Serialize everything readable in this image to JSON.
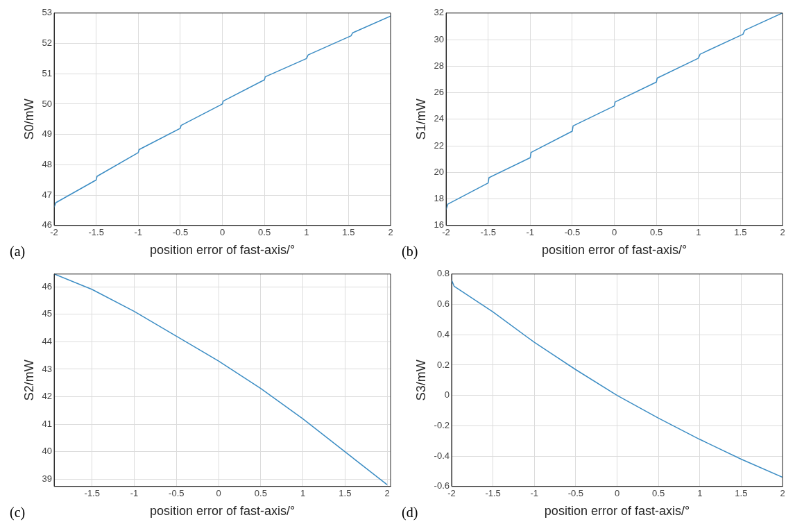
{
  "chart_data": [
    {
      "type": "line",
      "xlabel": "position error of fast-axis/°",
      "ylabel": "S0/mW",
      "annotations": [
        "(a)"
      ],
      "xlim": [
        -2,
        2
      ],
      "xticks": [
        -2,
        -1.5,
        -1,
        -0.5,
        0,
        0.5,
        1,
        1.5,
        2
      ],
      "ylim": [
        46,
        53
      ],
      "yticks": [
        46,
        47,
        48,
        49,
        50,
        51,
        52,
        53
      ],
      "grid": true,
      "legend": false,
      "series": [
        {
          "color": "#3c8dc4",
          "x": [
            -2,
            -1.98,
            -1.5,
            -1.49,
            -1,
            -0.99,
            -0.5,
            -0.49,
            0,
            0.01,
            0.5,
            0.51,
            1,
            1.02,
            1.53,
            1.55,
            2
          ],
          "values": [
            46.6,
            46.75,
            47.5,
            47.62,
            48.4,
            48.5,
            49.2,
            49.3,
            50.0,
            50.1,
            50.8,
            50.9,
            51.5,
            51.62,
            52.25,
            52.35,
            52.9
          ]
        }
      ]
    },
    {
      "type": "line",
      "xlabel": "position error of fast-axis/°",
      "ylabel": "S1/mW",
      "annotations": [
        "(b)"
      ],
      "xlim": [
        -2,
        2
      ],
      "xticks": [
        -2,
        -1.5,
        -1,
        -0.5,
        0,
        0.5,
        1,
        1.5,
        2
      ],
      "ylim": [
        16,
        32
      ],
      "yticks": [
        16,
        18,
        20,
        22,
        24,
        26,
        28,
        30,
        32
      ],
      "grid": true,
      "legend": false,
      "series": [
        {
          "color": "#3c8dc4",
          "x": [
            -2,
            -1.98,
            -1.5,
            -1.49,
            -1,
            -0.99,
            -0.5,
            -0.49,
            0,
            0.01,
            0.5,
            0.51,
            1,
            1.02,
            1.53,
            1.55,
            2
          ],
          "values": [
            17.2,
            17.6,
            19.2,
            19.6,
            21.1,
            21.5,
            23.1,
            23.5,
            25.0,
            25.3,
            26.8,
            27.1,
            28.6,
            28.9,
            30.4,
            30.7,
            32
          ]
        }
      ]
    },
    {
      "type": "line",
      "xlabel": "position error of fast-axis/°",
      "ylabel": "S2/mW",
      "annotations": [
        "(c)"
      ],
      "xlim": [
        -1.95,
        2.04
      ],
      "xticks": [
        -1.5,
        -1,
        -0.5,
        0,
        0.5,
        1,
        1.5,
        2
      ],
      "ylim": [
        38.74,
        46.46
      ],
      "yticks": [
        39,
        40,
        41,
        42,
        43,
        44,
        45,
        46
      ],
      "grid": true,
      "legend": false,
      "series": [
        {
          "color": "#3c8dc4",
          "x": [
            -1.95,
            -1.5,
            -1,
            -0.5,
            0,
            0.5,
            1,
            1.5,
            2
          ],
          "values": [
            46.46,
            45.9,
            45.1,
            44.2,
            43.3,
            42.3,
            41.2,
            40.0,
            38.8
          ]
        }
      ]
    },
    {
      "type": "line",
      "xlabel": "position error of fast-axis/°",
      "ylabel": "S3/mW",
      "annotations": [
        "(d)"
      ],
      "xlim": [
        -2,
        2
      ],
      "xticks": [
        -2,
        -1.5,
        -1,
        -0.5,
        0,
        0.5,
        1,
        1.5,
        2
      ],
      "ylim": [
        -0.6,
        0.8
      ],
      "yticks": [
        -0.6,
        -0.4,
        -0.2,
        0,
        0.2,
        0.4,
        0.6,
        0.8
      ],
      "grid": true,
      "legend": false,
      "series": [
        {
          "color": "#3c8dc4",
          "x": [
            -2,
            -1.97,
            -1.5,
            -1,
            -0.5,
            0,
            0.5,
            1,
            1.5,
            2
          ],
          "values": [
            0.76,
            0.72,
            0.55,
            0.35,
            0.17,
            0.0,
            -0.15,
            -0.29,
            -0.42,
            -0.54
          ]
        }
      ]
    }
  ]
}
